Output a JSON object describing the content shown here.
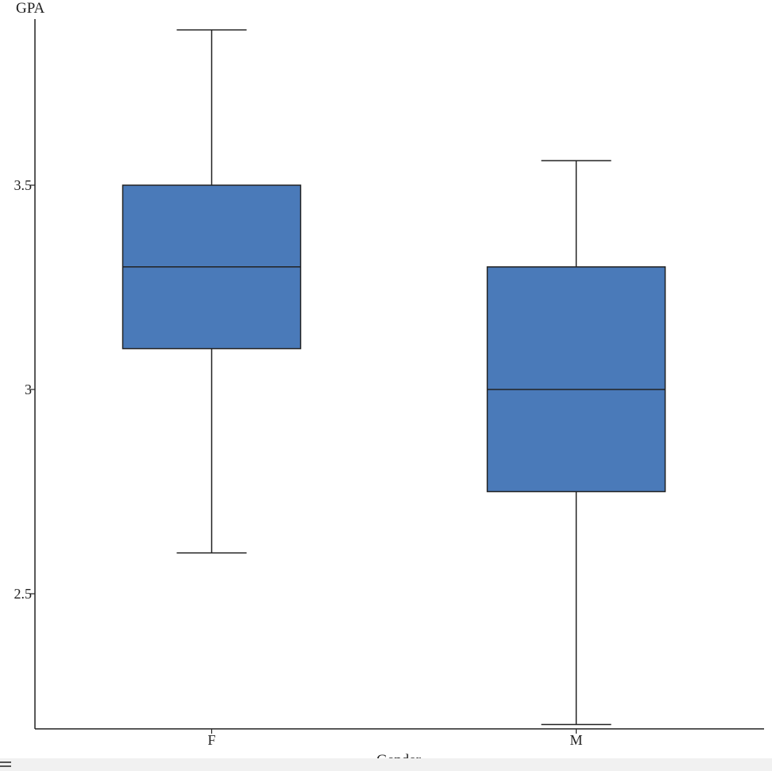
{
  "chart_data": {
    "type": "box",
    "xlabel": "Gender",
    "ylabel": "GPA",
    "categories": [
      "F",
      "M"
    ],
    "boxes": [
      {
        "category": "F",
        "min": 2.6,
        "q1": 3.1,
        "median": 3.3,
        "q3": 3.5,
        "max": 3.88
      },
      {
        "category": "M",
        "min": 2.18,
        "q1": 2.75,
        "median": 3.0,
        "q3": 3.3,
        "max": 3.56
      }
    ],
    "ylim": [
      2.18,
      3.9
    ],
    "yticks": [
      2.5,
      3.0,
      3.5
    ],
    "ytick_labels": [
      "2.5",
      "3",
      "3.5"
    ],
    "grid": false,
    "box_color": "#4a7ab9"
  }
}
